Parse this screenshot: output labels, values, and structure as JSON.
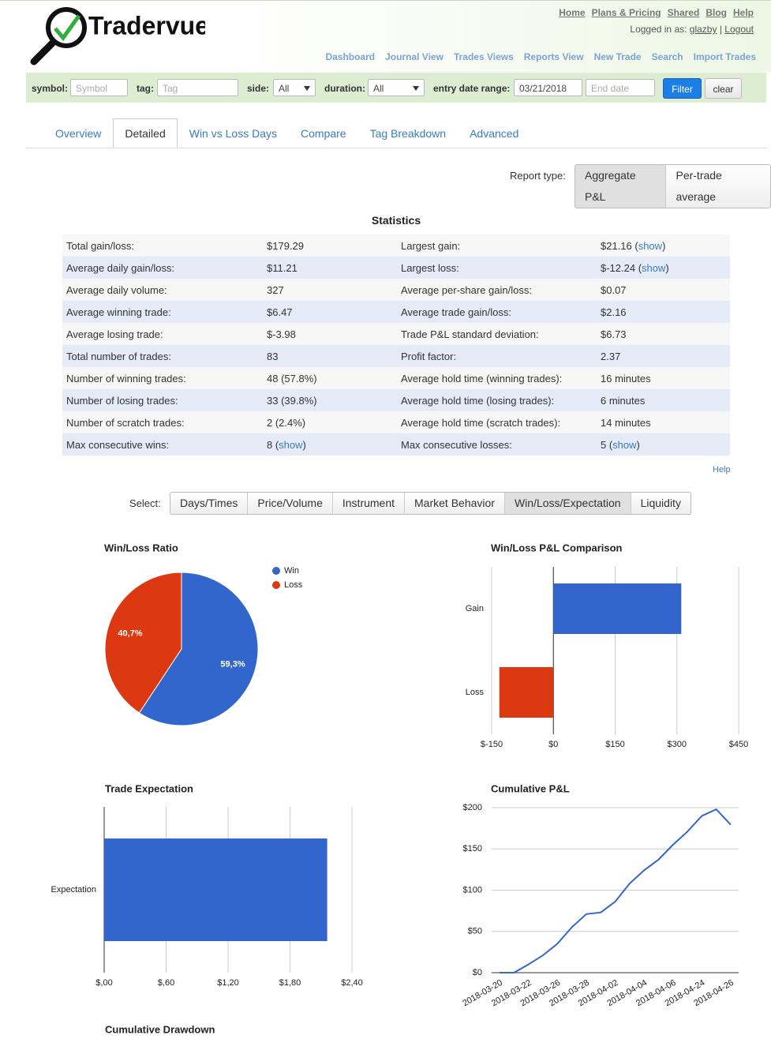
{
  "header": {
    "brand": "Tradervue",
    "top_links": [
      "Home",
      "Plans & Pricing",
      "Shared",
      "Blog",
      "Help"
    ],
    "logged_in_label": "Logged in as:",
    "user": "glazby",
    "separator": "|",
    "logout": "Logout"
  },
  "nav": [
    "Dashboard",
    "Journal View",
    "Trades Views",
    "Reports View",
    "New Trade",
    "Search",
    "Import Trades"
  ],
  "filters": {
    "symbol": {
      "label": "symbol:",
      "placeholder": "Symbol"
    },
    "tag": {
      "label": "tag:",
      "placeholder": "Tag"
    },
    "side": {
      "label": "side:",
      "value": "All"
    },
    "duration": {
      "label": "duration:",
      "value": "All"
    },
    "date_range": {
      "label": "entry date range:",
      "start": "03/21/2018",
      "end_placeholder": "End date"
    },
    "filter_button": "Filter",
    "clear_button": "clear"
  },
  "tabs": {
    "items": [
      "Overview",
      "Detailed",
      "Win vs Loss Days",
      "Compare",
      "Tag Breakdown",
      "Advanced"
    ],
    "active": 1
  },
  "report_type": {
    "label": "Report type:",
    "options": [
      "Aggregate P&L",
      "Per-trade average"
    ],
    "active": 0
  },
  "statistics": {
    "title": "Statistics",
    "rows": [
      [
        "Total gain/loss:",
        "$179.29",
        "Largest gain:",
        {
          "text": "$21.16 (",
          "link": "show",
          "after": ")"
        }
      ],
      [
        "Average daily gain/loss:",
        "$11.21",
        "Largest loss:",
        {
          "text": "$-12.24 (",
          "link": "show",
          "after": ")"
        }
      ],
      [
        "Average daily volume:",
        "327",
        "Average per-share gain/loss:",
        "$0.07"
      ],
      [
        "Average winning trade:",
        "$6.47",
        "Average trade gain/loss:",
        "$2.16"
      ],
      [
        "Average losing trade:",
        "$-3.98",
        "Trade P&L standard deviation:",
        "$6.73"
      ],
      [
        "Total number of trades:",
        "83",
        "Profit factor:",
        "2.37"
      ],
      [
        "Number of winning trades:",
        "48 (57.8%)",
        "Average hold time (winning trades):",
        "16 minutes"
      ],
      [
        "Number of losing trades:",
        "33 (39.8%)",
        "Average hold time (losing trades):",
        "6 minutes"
      ],
      [
        "Number of scratch trades:",
        "2 (2.4%)",
        "Average hold time (scratch trades):",
        "14 minutes"
      ],
      [
        "Max consecutive wins:",
        {
          "text": "8 (",
          "link": "show",
          "after": ")"
        },
        "Max consecutive losses:",
        {
          "text": "5 (",
          "link": "show",
          "after": ")"
        }
      ]
    ],
    "help": "Help"
  },
  "select": {
    "label": "Select:",
    "options": [
      "Days/Times",
      "Price/Volume",
      "Instrument",
      "Market Behavior",
      "Win/Loss/Expectation",
      "Liquidity"
    ],
    "active": 4
  },
  "chart_data": [
    {
      "type": "pie",
      "title": "Win/Loss Ratio",
      "categories": [
        "Win",
        "Loss"
      ],
      "values": [
        59.3,
        40.7
      ],
      "value_labels": [
        "59,3%",
        "40,7%"
      ],
      "colors": [
        "#3366cc",
        "#dc3912"
      ],
      "legend": "top-right"
    },
    {
      "type": "hbar",
      "title": "Win/Loss P&L Comparison",
      "categories": [
        "Gain",
        "Loss"
      ],
      "values": [
        310.6,
        -131.3
      ],
      "colors": [
        "#3366cc",
        "#dc3912"
      ],
      "xlim": [
        -150,
        450
      ],
      "xticks": [
        {
          "value": -150,
          "label": "$-150"
        },
        {
          "value": 0,
          "label": "$0"
        },
        {
          "value": 150,
          "label": "$150"
        },
        {
          "value": 300,
          "label": "$300"
        },
        {
          "value": 450,
          "label": "$450"
        }
      ],
      "grid": true
    },
    {
      "type": "hbar",
      "title": "Trade Expectation",
      "categories": [
        "Expectation"
      ],
      "values": [
        2.16
      ],
      "colors": [
        "#3366cc"
      ],
      "xlim": [
        0,
        2.4
      ],
      "xticks": [
        {
          "value": 0,
          "label": "$,00"
        },
        {
          "value": 0.6,
          "label": "$,60"
        },
        {
          "value": 1.2,
          "label": "$1,20"
        },
        {
          "value": 1.8,
          "label": "$1,80"
        },
        {
          "value": 2.4,
          "label": "$2,40"
        }
      ],
      "grid": true
    },
    {
      "type": "line",
      "title": "Cumulative P&L",
      "categories": [
        "2018-03-20",
        null,
        "2018-03-22",
        null,
        "2018-03-26",
        null,
        "2018-03-28",
        null,
        "2018-04-02",
        null,
        "2018-04-04",
        null,
        "2018-04-06",
        null,
        "2018-04-24",
        null,
        "2018-04-26"
      ],
      "values": [
        0,
        0,
        10,
        21,
        35,
        55,
        71,
        73,
        86,
        108,
        124,
        137,
        155,
        171,
        190,
        198,
        179.29
      ],
      "color": "#3366cc",
      "ylim": [
        0,
        200
      ],
      "yticks": [
        {
          "value": 0,
          "label": "$0"
        },
        {
          "value": 50,
          "label": "$50"
        },
        {
          "value": 100,
          "label": "$100"
        },
        {
          "value": 150,
          "label": "$150"
        },
        {
          "value": 200,
          "label": "$200"
        }
      ],
      "grid": true
    }
  ],
  "drawdown_title": "Cumulative Drawdown"
}
